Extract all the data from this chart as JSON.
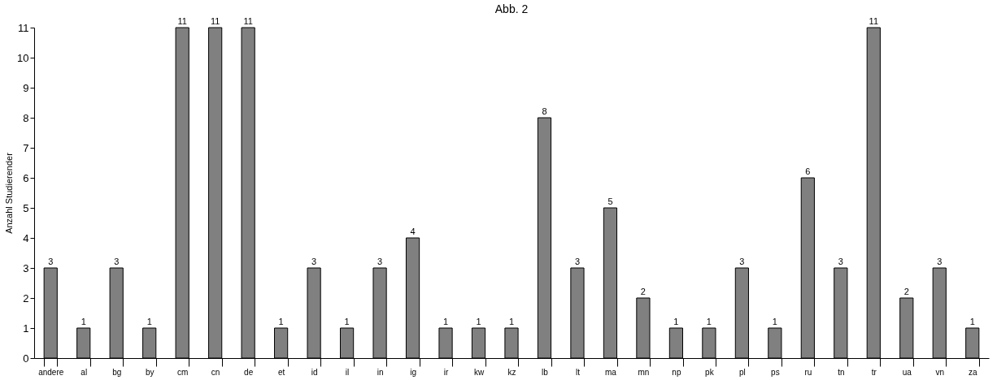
{
  "chart_data": {
    "type": "bar",
    "title": "Abb. 2",
    "ylabel": "Anzahl Studierender",
    "categories": [
      "andere",
      "al",
      "bg",
      "by",
      "cm",
      "cn",
      "de",
      "et",
      "id",
      "il",
      "in",
      "ig",
      "ir",
      "kw",
      "kz",
      "lb",
      "lt",
      "ma",
      "mn",
      "np",
      "pk",
      "pl",
      "ps",
      "ru",
      "tn",
      "tr",
      "ua",
      "vn",
      "za"
    ],
    "values": [
      3,
      1,
      3,
      1,
      11,
      11,
      11,
      1,
      3,
      1,
      3,
      4,
      1,
      1,
      1,
      8,
      3,
      5,
      2,
      1,
      1,
      3,
      1,
      6,
      3,
      11,
      2,
      3,
      1
    ],
    "color": "#808080",
    "ylim": [
      0,
      11
    ],
    "yticks": [
      0,
      1,
      2,
      3,
      4,
      5,
      6,
      7,
      8,
      9,
      10,
      11
    ],
    "grid": false,
    "data_labels": true
  }
}
